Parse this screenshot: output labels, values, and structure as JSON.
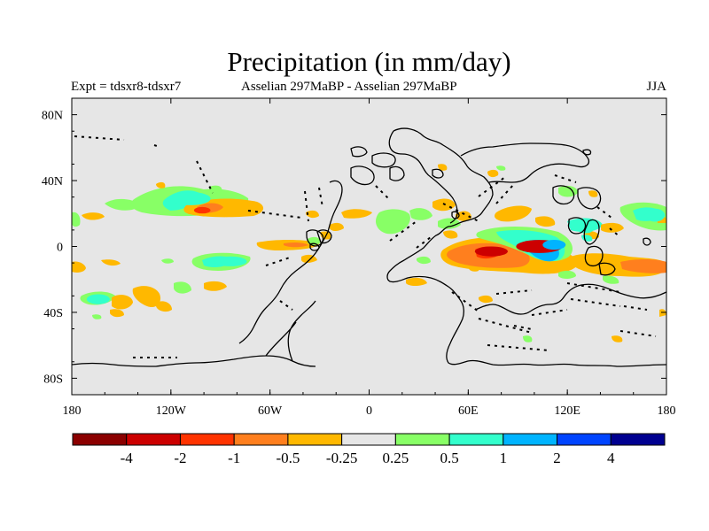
{
  "chart_data": {
    "type": "heatmap",
    "title": "Precipitation (in mm/day)",
    "subtitle_left": "Expt = tdsxr8-tdsxr7",
    "subtitle_center": "Asselian 297MaBP - Asselian 297MaBP",
    "subtitle_right": "JJA",
    "x_range": [
      -180,
      180
    ],
    "y_range": [
      -90,
      90
    ],
    "x_ticks": [
      -180,
      -120,
      -60,
      0,
      60,
      120,
      180
    ],
    "x_tick_labels": [
      "180",
      "120W",
      "60W",
      "0",
      "60E",
      "120E",
      "180"
    ],
    "y_ticks": [
      80,
      40,
      0,
      -40,
      -80
    ],
    "y_tick_labels": [
      "80N",
      "40N",
      "0",
      "40S",
      "80S"
    ],
    "colorbar": {
      "colors": [
        "#8b0000",
        "#cc0000",
        "#ff3300",
        "#ff7f1e",
        "#ffb800",
        "#e6e6e6",
        "#88ff66",
        "#33ffcc",
        "#00b4ff",
        "#0044ff",
        "#000090"
      ],
      "boundaries": [
        "-4",
        "-2",
        "-1",
        "-0.5",
        "-0.25",
        "0.25",
        "0.5",
        "1",
        "2",
        "4"
      ],
      "background_color": "#e6e6e6"
    },
    "anomalies": [
      {
        "lon": 103,
        "lat": 0,
        "rlon": 14,
        "rlat": 4,
        "level": -2
      },
      {
        "lon": 74,
        "lat": -3,
        "rlon": 10,
        "rlat": 3,
        "level": -2
      },
      {
        "lon": 112,
        "lat": 1,
        "rlon": 7,
        "rlat": 3,
        "level": 2
      },
      {
        "lon": -101,
        "lat": 22,
        "rlon": 5,
        "rlat": 2,
        "level": -1
      },
      {
        "lon": -108,
        "lat": 29,
        "rlon": 12,
        "rlat": 4,
        "level": 1
      },
      {
        "lon": -84,
        "lat": -9,
        "rlon": 10,
        "rlat": 3,
        "level": 1
      },
      {
        "lon": -164,
        "lat": -32,
        "rlon": 7,
        "rlat": 3,
        "level": 1
      },
      {
        "lon": 131,
        "lat": 11,
        "rlon": 5,
        "rlat": 3,
        "level": 1
      },
      {
        "lon": 173,
        "lat": 19,
        "rlon": 6,
        "rlat": 4,
        "level": 1
      }
    ]
  }
}
